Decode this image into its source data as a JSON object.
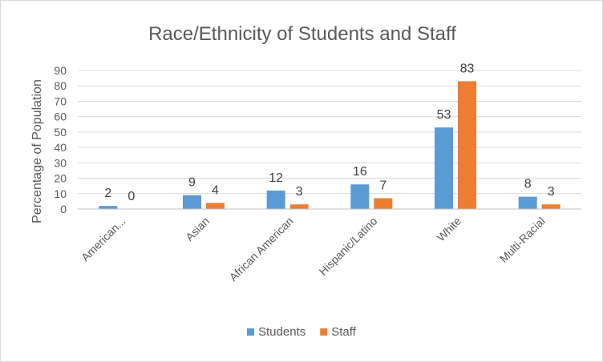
{
  "chart_data": {
    "type": "bar",
    "title": "Race/Ethnicity of Students and Staff",
    "ylabel": "Percentage of Population",
    "xlabel": "",
    "ylim": [
      0,
      90
    ],
    "ytick_step": 10,
    "grid": true,
    "legend_position": "bottom",
    "categories": [
      "American...",
      "Asian",
      "African American",
      "Hispanic/Latino",
      "White",
      "Multi-Racial"
    ],
    "series": [
      {
        "name": "Students",
        "color": "#5b9bd5",
        "values": [
          2,
          9,
          12,
          16,
          53,
          8
        ]
      },
      {
        "name": "Staff",
        "color": "#ed7d31",
        "values": [
          0,
          4,
          3,
          7,
          83,
          3
        ]
      }
    ]
  }
}
